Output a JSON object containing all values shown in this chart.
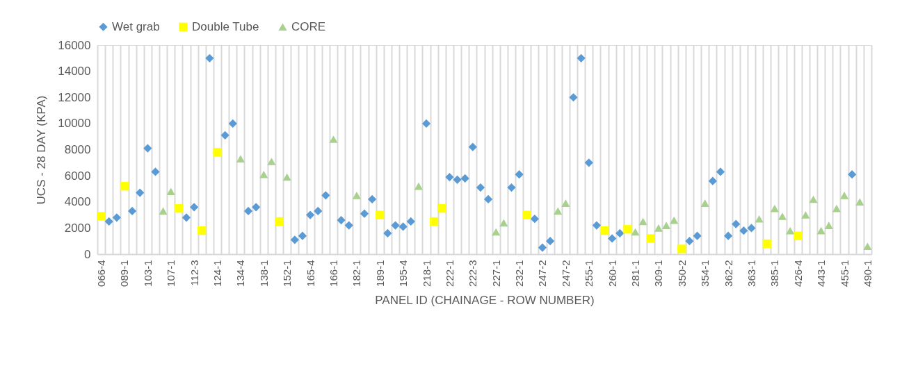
{
  "chart_data": {
    "type": "scatter",
    "xlabel": "PANEL ID (CHAINAGE - ROW NUMBER)",
    "ylabel": "UCS - 28 DAY  (KPA)",
    "categories": [
      "066-4",
      null,
      null,
      "089-1",
      null,
      null,
      "103-1",
      null,
      null,
      "107-1",
      null,
      null,
      "112-3",
      null,
      null,
      "124-1",
      null,
      null,
      "134-4",
      null,
      null,
      "138-1",
      null,
      null,
      "152-1",
      null,
      null,
      "165-4",
      null,
      null,
      "166-1",
      null,
      null,
      "182-1",
      null,
      null,
      "189-1",
      null,
      null,
      "195-4",
      null,
      null,
      "218-1",
      null,
      null,
      "222-1",
      null,
      null,
      "222-3",
      null,
      null,
      "227-1",
      null,
      null,
      "232-1",
      null,
      null,
      "247-2",
      null,
      null,
      "247-2",
      null,
      null,
      "255-1",
      null,
      null,
      "260-1",
      null,
      null,
      "281-1",
      null,
      null,
      "309-1",
      null,
      null,
      "350-2",
      null,
      null,
      "354-1",
      null,
      null,
      "362-2",
      null,
      null,
      "363-1",
      null,
      null,
      "385-1",
      null,
      null,
      "426-4",
      null,
      null,
      "443-1",
      null,
      null,
      "455-1",
      null,
      null,
      "490-1"
    ],
    "series": [
      {
        "name": "Wet grab",
        "color": "#5b9bd5",
        "marker": "diamond",
        "values": [
          null,
          2500,
          2800,
          null,
          3300,
          4700,
          8100,
          6300,
          null,
          null,
          null,
          2800,
          3600,
          null,
          15000,
          null,
          9100,
          10000,
          null,
          3300,
          3600,
          null,
          null,
          null,
          null,
          1100,
          1400,
          3000,
          3300,
          4500,
          null,
          2600,
          2200,
          null,
          3100,
          4200,
          null,
          1600,
          2200,
          2100,
          2500,
          null,
          10000,
          null,
          null,
          5900,
          5700,
          5800,
          8200,
          5100,
          4200,
          null,
          null,
          5100,
          6100,
          null,
          2700,
          500,
          1000,
          null,
          null,
          12000,
          15000,
          7000,
          2200,
          null,
          1200,
          1600,
          null,
          null,
          null,
          null,
          null,
          null,
          null,
          null,
          1000,
          1400,
          null,
          5600,
          6300,
          1400,
          2300,
          1800,
          2000,
          null,
          null,
          null,
          null,
          null,
          null,
          null,
          null,
          null,
          null,
          null,
          null,
          6100,
          null,
          null
        ]
      },
      {
        "name": "Double Tube",
        "color": "#ffff00",
        "marker": "square",
        "values": [
          2900,
          null,
          null,
          5200,
          null,
          null,
          null,
          null,
          null,
          null,
          3500,
          null,
          null,
          1800,
          null,
          7800,
          null,
          null,
          null,
          null,
          null,
          null,
          null,
          2500,
          null,
          null,
          null,
          null,
          null,
          null,
          null,
          null,
          null,
          null,
          null,
          null,
          3000,
          null,
          null,
          null,
          null,
          null,
          null,
          2500,
          3500,
          null,
          null,
          null,
          null,
          null,
          null,
          null,
          null,
          null,
          null,
          3000,
          null,
          null,
          null,
          null,
          null,
          null,
          null,
          null,
          null,
          1800,
          null,
          null,
          1900,
          null,
          null,
          1200,
          null,
          null,
          null,
          400,
          null,
          null,
          null,
          null,
          null,
          null,
          null,
          null,
          null,
          null,
          800,
          null,
          null,
          null,
          1400,
          null,
          null,
          null,
          null,
          null,
          null,
          null,
          null,
          null
        ]
      },
      {
        "name": "CORE",
        "color": "#a9d18e",
        "marker": "triangle",
        "values": [
          null,
          null,
          null,
          null,
          null,
          null,
          null,
          null,
          3300,
          4800,
          null,
          null,
          null,
          null,
          null,
          null,
          null,
          null,
          7300,
          null,
          null,
          6100,
          7100,
          null,
          5900,
          null,
          null,
          null,
          null,
          null,
          8800,
          null,
          null,
          4500,
          null,
          null,
          null,
          null,
          null,
          null,
          null,
          5200,
          null,
          null,
          null,
          null,
          null,
          null,
          null,
          null,
          null,
          1700,
          2400,
          null,
          null,
          null,
          null,
          null,
          null,
          3300,
          3900,
          null,
          null,
          null,
          null,
          null,
          null,
          null,
          null,
          1700,
          2500,
          null,
          2000,
          2200,
          2600,
          null,
          null,
          null,
          3900,
          null,
          null,
          null,
          null,
          null,
          null,
          2700,
          null,
          3500,
          2900,
          1800,
          null,
          3000,
          4200,
          1800,
          2200,
          3500,
          4500,
          null,
          4000,
          600
        ]
      }
    ],
    "ylim": [
      0,
      16000
    ],
    "yticks": [
      0,
      2000,
      4000,
      6000,
      8000,
      10000,
      12000,
      14000,
      16000
    ],
    "grid": "x",
    "legend": "top"
  }
}
